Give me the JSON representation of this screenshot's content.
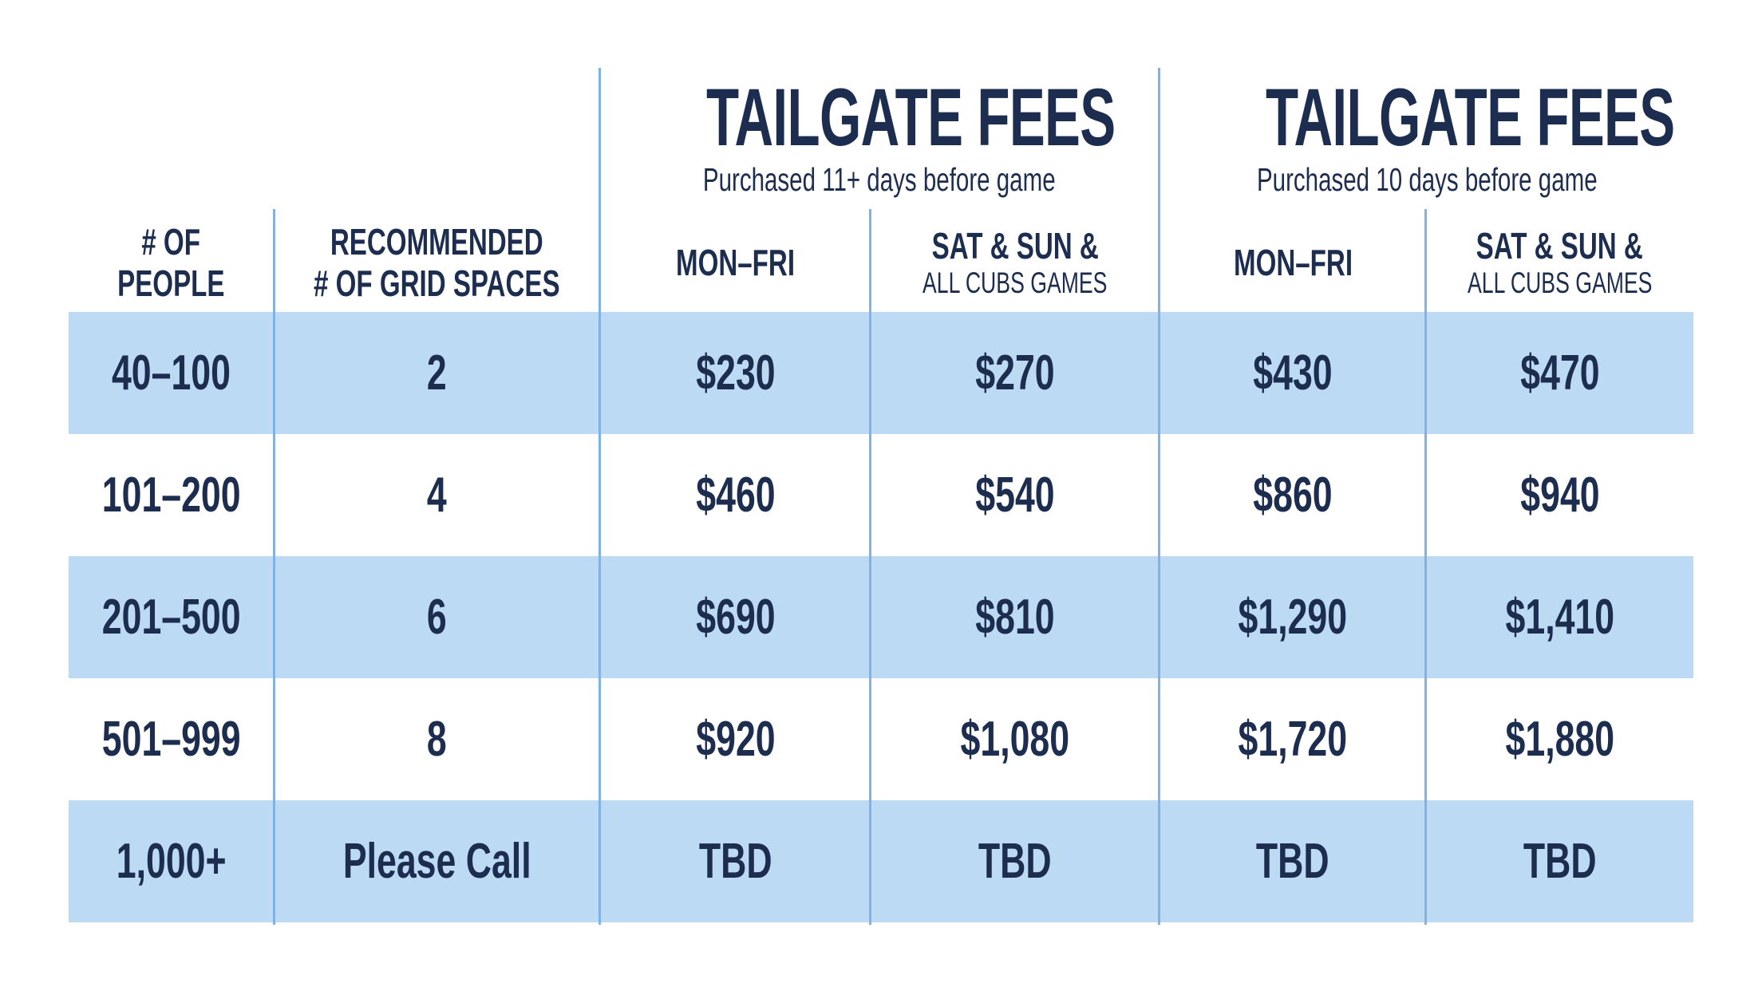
{
  "colors": {
    "navy": "#1d2d4f",
    "row_blue": "#bcdaf4",
    "divider_blue": "#82b2e4",
    "bg": "#ffffff"
  },
  "chart_data": {
    "type": "table",
    "group_headers": [
      {
        "title": "TAILGATE FEES",
        "subtitle": "Purchased 11+ days before game"
      },
      {
        "title": "TAILGATE FEES",
        "subtitle": "Purchased 10 days before game"
      }
    ],
    "column_headers": [
      {
        "line1": "# OF",
        "line2": "PEOPLE"
      },
      {
        "line1": "RECOMMENDED",
        "line2": "# OF GRID SPACES"
      },
      {
        "line1": "MON–FRI"
      },
      {
        "line1": "SAT & SUN &",
        "line2": "ALL CUBS GAMES"
      },
      {
        "line1": "MON–FRI"
      },
      {
        "line1": "SAT & SUN &",
        "line2": "ALL CUBS GAMES"
      }
    ],
    "rows": [
      [
        "40–100",
        "2",
        "$230",
        "$270",
        "$430",
        "$470"
      ],
      [
        "101–200",
        "4",
        "$460",
        "$540",
        "$860",
        "$940"
      ],
      [
        "201–500",
        "6",
        "$690",
        "$810",
        "$1,290",
        "$1,410"
      ],
      [
        "501–999",
        "8",
        "$920",
        "$1,080",
        "$1,720",
        "$1,880"
      ],
      [
        "1,000+",
        "Please Call",
        "TBD",
        "TBD",
        "TBD",
        "TBD"
      ]
    ]
  }
}
